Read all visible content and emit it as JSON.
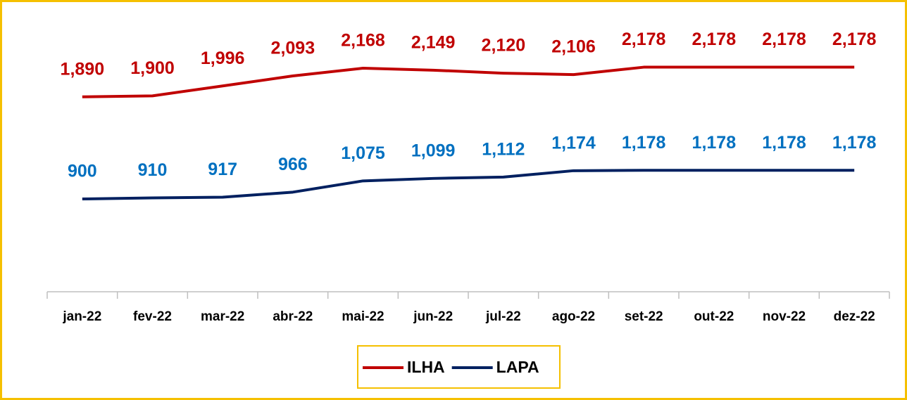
{
  "chart_data": {
    "type": "line",
    "categories": [
      "jan-22",
      "fev-22",
      "mar-22",
      "abr-22",
      "mai-22",
      "jun-22",
      "jul-22",
      "ago-22",
      "set-22",
      "out-22",
      "nov-22",
      "dez-22"
    ],
    "series": [
      {
        "name": "ILHA",
        "color": "#c00000",
        "label_color": "#c00000",
        "values": [
          1890,
          1900,
          1996,
          2093,
          2168,
          2149,
          2120,
          2106,
          2178,
          2178,
          2178,
          2178
        ],
        "value_labels": [
          "1,890",
          "1,900",
          "1,996",
          "2,093",
          "2,168",
          "2,149",
          "2,120",
          "2,106",
          "2,178",
          "2,178",
          "2,178",
          "2,178"
        ]
      },
      {
        "name": "LAPA",
        "color": "#002060",
        "label_color": "#0070c0",
        "values": [
          900,
          910,
          917,
          966,
          1075,
          1099,
          1112,
          1174,
          1178,
          1178,
          1178,
          1178
        ],
        "value_labels": [
          "900",
          "910",
          "917",
          "966",
          "1,075",
          "1,099",
          "1,112",
          "1,174",
          "1,178",
          "1,178",
          "1,178",
          "1,178"
        ]
      }
    ],
    "ylim": [
      0,
      2700
    ],
    "legend": "bottom"
  }
}
